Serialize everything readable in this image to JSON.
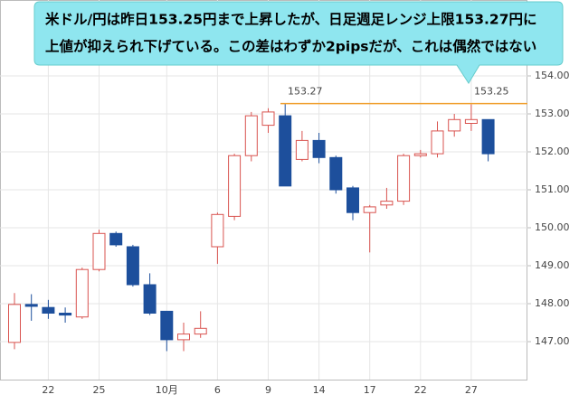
{
  "chart_data": {
    "type": "candlestick",
    "callout_lines": [
      "米ドル/円は昨日153.25円まで上昇したが、日足週足レンジ上限153.27円に",
      "上値が抑えられ下げている。この差はわずか2pipsだが、これは偶然ではない"
    ],
    "categories": [
      null,
      null,
      "22",
      null,
      null,
      "25",
      null,
      null,
      null,
      "10月",
      null,
      null,
      "6",
      null,
      null,
      "9",
      null,
      null,
      "14",
      null,
      null,
      "17",
      null,
      null,
      "22",
      null,
      null,
      "27",
      null
    ],
    "open": [
      146.98,
      147.98,
      147.9,
      147.75,
      147.65,
      148.9,
      149.85,
      149.5,
      148.5,
      147.8,
      147.05,
      147.2,
      149.5,
      150.3,
      151.9,
      152.7,
      152.95,
      151.8,
      152.3,
      151.85,
      151.05,
      150.4,
      150.6,
      150.7,
      151.9,
      151.95,
      152.55,
      152.75,
      152.85
    ],
    "high": [
      148.28,
      148.25,
      148.1,
      147.9,
      148.95,
      149.95,
      149.9,
      149.55,
      148.8,
      147.8,
      147.5,
      147.8,
      150.4,
      151.95,
      153.05,
      153.15,
      153.27,
      152.55,
      152.5,
      151.9,
      151.1,
      150.6,
      151.05,
      151.95,
      152.05,
      152.8,
      153.0,
      153.25,
      152.85
    ],
    "low": [
      146.8,
      147.55,
      147.6,
      147.5,
      147.6,
      148.85,
      149.5,
      148.45,
      147.7,
      146.75,
      146.75,
      147.1,
      149.05,
      150.2,
      151.75,
      152.5,
      151.1,
      151.75,
      151.7,
      150.9,
      150.2,
      149.35,
      150.5,
      150.6,
      151.85,
      151.85,
      152.4,
      152.55,
      151.75
    ],
    "close": [
      147.98,
      147.93,
      147.75,
      147.7,
      148.9,
      149.85,
      149.55,
      148.5,
      147.75,
      147.05,
      147.2,
      147.35,
      150.35,
      151.9,
      152.95,
      153.05,
      151.1,
      152.3,
      151.85,
      151.0,
      150.4,
      150.55,
      150.7,
      151.9,
      151.95,
      152.55,
      152.85,
      152.85,
      151.95
    ],
    "up_color": "#d9534f",
    "down_color": "#1d4f9c",
    "hline": {
      "value": 153.27,
      "color": "#f0a030"
    },
    "annotations": [
      153.27,
      153.25
    ],
    "ylim": [
      146,
      156
    ],
    "yticks": [
      {
        "value": 147,
        "label": "147.00"
      },
      {
        "value": 148,
        "label": "148.00"
      },
      {
        "value": 149,
        "label": "149.00"
      },
      {
        "value": 150,
        "label": "150.00"
      },
      {
        "value": 151,
        "label": "151.00"
      },
      {
        "value": 152,
        "label": "152.00"
      },
      {
        "value": 153,
        "label": "153.00"
      },
      {
        "value": 154,
        "label": "154.00"
      }
    ],
    "grid": true
  }
}
